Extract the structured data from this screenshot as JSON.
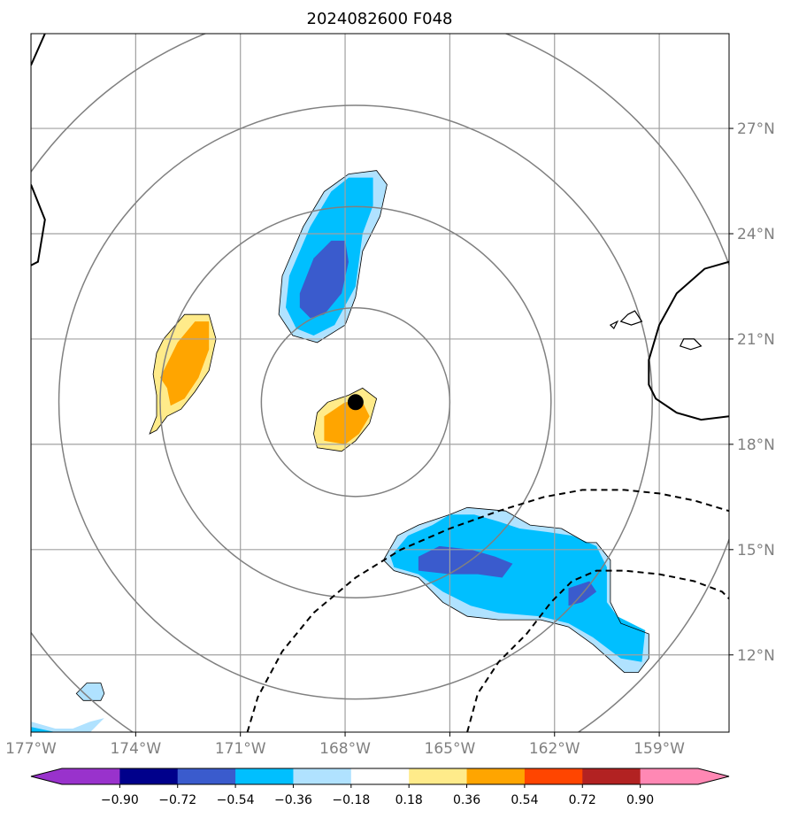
{
  "chart_data": {
    "type": "heatmap",
    "title": "2024082600 F048",
    "x_tick_labels": [
      "177°W",
      "174°W",
      "171°W",
      "168°W",
      "165°W",
      "162°W",
      "159°W"
    ],
    "x_ticks": [
      -177,
      -174,
      -171,
      -168,
      -165,
      -162,
      -159
    ],
    "y_tick_labels": [
      "12°N",
      "15°N",
      "18°N",
      "21°N",
      "24°N",
      "27°N"
    ],
    "y_ticks": [
      12,
      15,
      18,
      21,
      24,
      27
    ],
    "xlim": [
      -177,
      -157
    ],
    "ylim": [
      9.8,
      29.7
    ],
    "grid": true,
    "storm_center": {
      "lon": -167.7,
      "lat": 19.2
    },
    "range_rings_deg": [
      2.7,
      5.6,
      8.5,
      11.4
    ],
    "colorbar": {
      "tick_labels": [
        "−0.90",
        "−0.72",
        "−0.54",
        "−0.36",
        "−0.18",
        "0.18",
        "0.36",
        "0.54",
        "0.72",
        "0.90"
      ],
      "levels": [
        -0.9,
        -0.72,
        -0.54,
        -0.36,
        -0.18,
        0.18,
        0.36,
        0.54,
        0.72,
        0.9
      ],
      "colors": [
        "#9932cc",
        "#00008b",
        "#3a5bcd",
        "#00bfff",
        "#b0e2ff",
        "#ffffff",
        "#ffeb8a",
        "#ffa500",
        "#ff4500",
        "#b22222",
        "#ff88b4"
      ],
      "extend": "both"
    },
    "shaded_regions": [
      {
        "name": "neg-north",
        "level": -0.36,
        "color": "#b0e2ff",
        "lonlat": [
          [
            -169.8,
            22.8
          ],
          [
            -169.2,
            24.2
          ],
          [
            -168.6,
            25.2
          ],
          [
            -167.9,
            25.7
          ],
          [
            -167.1,
            25.8
          ],
          [
            -166.8,
            25.4
          ],
          [
            -167.0,
            24.5
          ],
          [
            -167.5,
            23.5
          ],
          [
            -167.7,
            22.2
          ],
          [
            -168.0,
            21.4
          ],
          [
            -168.8,
            20.9
          ],
          [
            -169.5,
            21.1
          ],
          [
            -169.9,
            21.7
          ]
        ]
      },
      {
        "name": "neg-north",
        "level": -0.54,
        "color": "#00bfff",
        "lonlat": [
          [
            -169.6,
            22.8
          ],
          [
            -169.0,
            24.2
          ],
          [
            -168.4,
            25.2
          ],
          [
            -167.9,
            25.6
          ],
          [
            -167.2,
            25.6
          ],
          [
            -167.2,
            24.8
          ],
          [
            -167.5,
            24.0
          ],
          [
            -167.7,
            22.5
          ],
          [
            -168.3,
            21.4
          ],
          [
            -168.9,
            21.1
          ],
          [
            -169.4,
            21.3
          ],
          [
            -169.7,
            21.9
          ]
        ]
      },
      {
        "name": "neg-north",
        "level": -0.72,
        "color": "#3a5bcd",
        "lonlat": [
          [
            -169.3,
            22.3
          ],
          [
            -168.9,
            23.3
          ],
          [
            -168.4,
            23.8
          ],
          [
            -168.0,
            23.8
          ],
          [
            -167.9,
            23.2
          ],
          [
            -168.1,
            22.3
          ],
          [
            -168.6,
            21.7
          ],
          [
            -169.0,
            21.6
          ],
          [
            -169.3,
            21.9
          ]
        ]
      },
      {
        "name": "pos-west",
        "level": 0.36,
        "color": "#ffeb8a",
        "lonlat": [
          [
            -173.2,
            21.0
          ],
          [
            -172.6,
            21.7
          ],
          [
            -171.9,
            21.7
          ],
          [
            -171.7,
            21.0
          ],
          [
            -171.9,
            20.1
          ],
          [
            -172.3,
            19.5
          ],
          [
            -172.7,
            19.0
          ],
          [
            -173.1,
            18.8
          ],
          [
            -173.4,
            18.4
          ],
          [
            -173.6,
            18.3
          ],
          [
            -173.4,
            18.8
          ],
          [
            -173.4,
            19.4
          ],
          [
            -173.5,
            20.0
          ],
          [
            -173.4,
            20.6
          ]
        ]
      },
      {
        "name": "pos-west",
        "level": 0.54,
        "color": "#ffa500",
        "lonlat": [
          [
            -173.1,
            20.3
          ],
          [
            -172.8,
            20.9
          ],
          [
            -172.3,
            21.5
          ],
          [
            -171.9,
            21.5
          ],
          [
            -171.9,
            20.7
          ],
          [
            -172.2,
            19.9
          ],
          [
            -172.6,
            19.3
          ],
          [
            -173.0,
            19.1
          ],
          [
            -173.1,
            19.6
          ],
          [
            -173.3,
            19.9
          ]
        ]
      },
      {
        "name": "pos-center",
        "level": 0.36,
        "color": "#ffeb8a",
        "lonlat": [
          [
            -168.8,
            18.9
          ],
          [
            -168.5,
            19.2
          ],
          [
            -167.9,
            19.4
          ],
          [
            -167.5,
            19.6
          ],
          [
            -167.1,
            19.3
          ],
          [
            -167.3,
            18.6
          ],
          [
            -167.7,
            18.1
          ],
          [
            -168.1,
            17.8
          ],
          [
            -168.8,
            17.9
          ],
          [
            -168.9,
            18.3
          ]
        ]
      },
      {
        "name": "pos-center",
        "level": 0.54,
        "color": "#ffa500",
        "lonlat": [
          [
            -168.6,
            18.8
          ],
          [
            -168.0,
            19.2
          ],
          [
            -167.5,
            19.2
          ],
          [
            -167.3,
            18.8
          ],
          [
            -167.6,
            18.3
          ],
          [
            -168.0,
            18.0
          ],
          [
            -168.6,
            18.1
          ],
          [
            -168.6,
            18.5
          ]
        ]
      },
      {
        "name": "neg-south",
        "level": -0.36,
        "color": "#b0e2ff",
        "lonlat": [
          [
            -166.9,
            14.7
          ],
          [
            -166.5,
            15.4
          ],
          [
            -165.9,
            15.7
          ],
          [
            -165.0,
            16.0
          ],
          [
            -164.5,
            16.2
          ],
          [
            -163.4,
            16.1
          ],
          [
            -162.7,
            15.7
          ],
          [
            -161.8,
            15.6
          ],
          [
            -161.1,
            15.2
          ],
          [
            -160.8,
            15.2
          ],
          [
            -160.4,
            14.7
          ],
          [
            -160.4,
            13.5
          ],
          [
            -160.1,
            12.9
          ],
          [
            -159.3,
            12.6
          ],
          [
            -159.3,
            11.9
          ],
          [
            -159.6,
            11.5
          ],
          [
            -160.0,
            11.5
          ],
          [
            -160.9,
            12.3
          ],
          [
            -161.6,
            12.8
          ],
          [
            -162.4,
            13.0
          ],
          [
            -163.6,
            13.0
          ],
          [
            -164.5,
            13.1
          ],
          [
            -165.2,
            13.5
          ],
          [
            -165.9,
            14.2
          ],
          [
            -166.6,
            14.4
          ]
        ]
      },
      {
        "name": "neg-south",
        "level": -0.54,
        "color": "#00bfff",
        "lonlat": [
          [
            -166.7,
            14.8
          ],
          [
            -166.2,
            15.4
          ],
          [
            -165.5,
            15.7
          ],
          [
            -165.0,
            16.0
          ],
          [
            -164.3,
            16.0
          ],
          [
            -163.6,
            15.8
          ],
          [
            -163.0,
            15.6
          ],
          [
            -162.2,
            15.5
          ],
          [
            -161.5,
            15.4
          ],
          [
            -160.8,
            15.1
          ],
          [
            -160.5,
            14.5
          ],
          [
            -160.5,
            13.5
          ],
          [
            -160.2,
            13.1
          ],
          [
            -159.4,
            12.7
          ],
          [
            -159.5,
            11.8
          ],
          [
            -160.1,
            11.9
          ],
          [
            -160.9,
            12.5
          ],
          [
            -161.6,
            12.9
          ],
          [
            -162.4,
            13.1
          ],
          [
            -163.6,
            13.2
          ],
          [
            -164.4,
            13.4
          ],
          [
            -165.2,
            13.8
          ],
          [
            -165.9,
            14.3
          ],
          [
            -166.6,
            14.5
          ]
        ]
      },
      {
        "name": "neg-south",
        "level": -0.72,
        "color": "#3a5bcd",
        "lonlat": [
          [
            -165.9,
            14.8
          ],
          [
            -165.3,
            15.1
          ],
          [
            -164.4,
            15.0
          ],
          [
            -163.7,
            14.8
          ],
          [
            -163.2,
            14.6
          ],
          [
            -163.5,
            14.2
          ],
          [
            -164.2,
            14.3
          ],
          [
            -165.0,
            14.3
          ],
          [
            -165.9,
            14.4
          ]
        ]
      },
      {
        "name": "neg-south",
        "level": -0.72,
        "color": "#3a5bcd",
        "lonlat": [
          [
            -161.6,
            13.9
          ],
          [
            -161.0,
            14.1
          ],
          [
            -160.8,
            13.8
          ],
          [
            -161.2,
            13.5
          ],
          [
            -161.6,
            13.4
          ]
        ]
      },
      {
        "name": "neg-islet",
        "level": -0.36,
        "color": "#b0e2ff",
        "lonlat": [
          [
            -175.7,
            10.9
          ],
          [
            -175.4,
            11.2
          ],
          [
            -175.0,
            11.2
          ],
          [
            -174.9,
            10.9
          ],
          [
            -175.0,
            10.7
          ],
          [
            -175.5,
            10.7
          ]
        ]
      },
      {
        "name": "neg-sw-corner",
        "level": -0.36,
        "color": "#b0e2ff",
        "lonlat": [
          [
            -177.0,
            10.1
          ],
          [
            -176.3,
            9.9
          ],
          [
            -175.8,
            9.9
          ],
          [
            -175.3,
            10.1
          ],
          [
            -174.9,
            10.2
          ],
          [
            -175.3,
            9.8
          ],
          [
            -177.0,
            9.8
          ]
        ]
      },
      {
        "name": "neg-sw-corner",
        "level": -0.54,
        "color": "#00bfff",
        "lonlat": [
          [
            -177.0,
            9.95
          ],
          [
            -176.3,
            9.8
          ],
          [
            -177.0,
            9.8
          ]
        ]
      }
    ],
    "dashed_contours": [
      {
        "lonlat": [
          [
            -170.8,
            9.8
          ],
          [
            -170.5,
            10.8
          ],
          [
            -169.8,
            12.1
          ],
          [
            -168.9,
            13.2
          ],
          [
            -167.7,
            14.2
          ],
          [
            -166.4,
            15.0
          ],
          [
            -165.0,
            15.6
          ],
          [
            -163.6,
            16.1
          ],
          [
            -162.3,
            16.5
          ],
          [
            -161.2,
            16.7
          ],
          [
            -160.0,
            16.7
          ],
          [
            -159.0,
            16.6
          ],
          [
            -158.0,
            16.4
          ],
          [
            -157.0,
            16.1
          ]
        ]
      },
      {
        "lonlat": [
          [
            -164.5,
            9.8
          ],
          [
            -164.2,
            10.9
          ],
          [
            -163.6,
            11.8
          ],
          [
            -162.8,
            12.6
          ],
          [
            -162.1,
            13.5
          ],
          [
            -161.5,
            14.1
          ],
          [
            -160.8,
            14.4
          ],
          [
            -160.0,
            14.4
          ],
          [
            -159.0,
            14.3
          ],
          [
            -158.0,
            14.1
          ],
          [
            -157.2,
            13.8
          ],
          [
            -157.0,
            13.6
          ]
        ]
      }
    ],
    "land_outlines": [
      {
        "lonlat": [
          [
            -177.0,
            28.8
          ],
          [
            -176.6,
            29.7
          ]
        ]
      },
      {
        "lonlat": [
          [
            -177.0,
            25.4
          ],
          [
            -176.6,
            24.4
          ],
          [
            -176.8,
            23.2
          ],
          [
            -177.0,
            23.1
          ]
        ]
      },
      {
        "lonlat": [
          [
            -157.0,
            23.2
          ],
          [
            -157.7,
            23.0
          ],
          [
            -158.5,
            22.3
          ],
          [
            -159.0,
            21.4
          ],
          [
            -159.3,
            20.4
          ],
          [
            -159.3,
            19.7
          ],
          [
            -159.1,
            19.3
          ],
          [
            -158.5,
            18.9
          ],
          [
            -157.8,
            18.7
          ],
          [
            -157.0,
            18.8
          ]
        ]
      },
      {
        "lonlat": [
          [
            -159.9,
            21.7
          ],
          [
            -159.7,
            21.8
          ],
          [
            -159.5,
            21.5
          ],
          [
            -159.8,
            21.4
          ],
          [
            -160.1,
            21.5
          ]
        ],
        "closed": true
      },
      {
        "lonlat": [
          [
            -158.3,
            21.0
          ],
          [
            -158.0,
            21.0
          ],
          [
            -157.8,
            20.8
          ],
          [
            -158.1,
            20.7
          ],
          [
            -158.4,
            20.8
          ]
        ],
        "closed": true
      },
      {
        "lonlat": [
          [
            -160.4,
            21.4
          ],
          [
            -160.2,
            21.5
          ],
          [
            -160.3,
            21.3
          ]
        ],
        "closed": true
      }
    ]
  }
}
